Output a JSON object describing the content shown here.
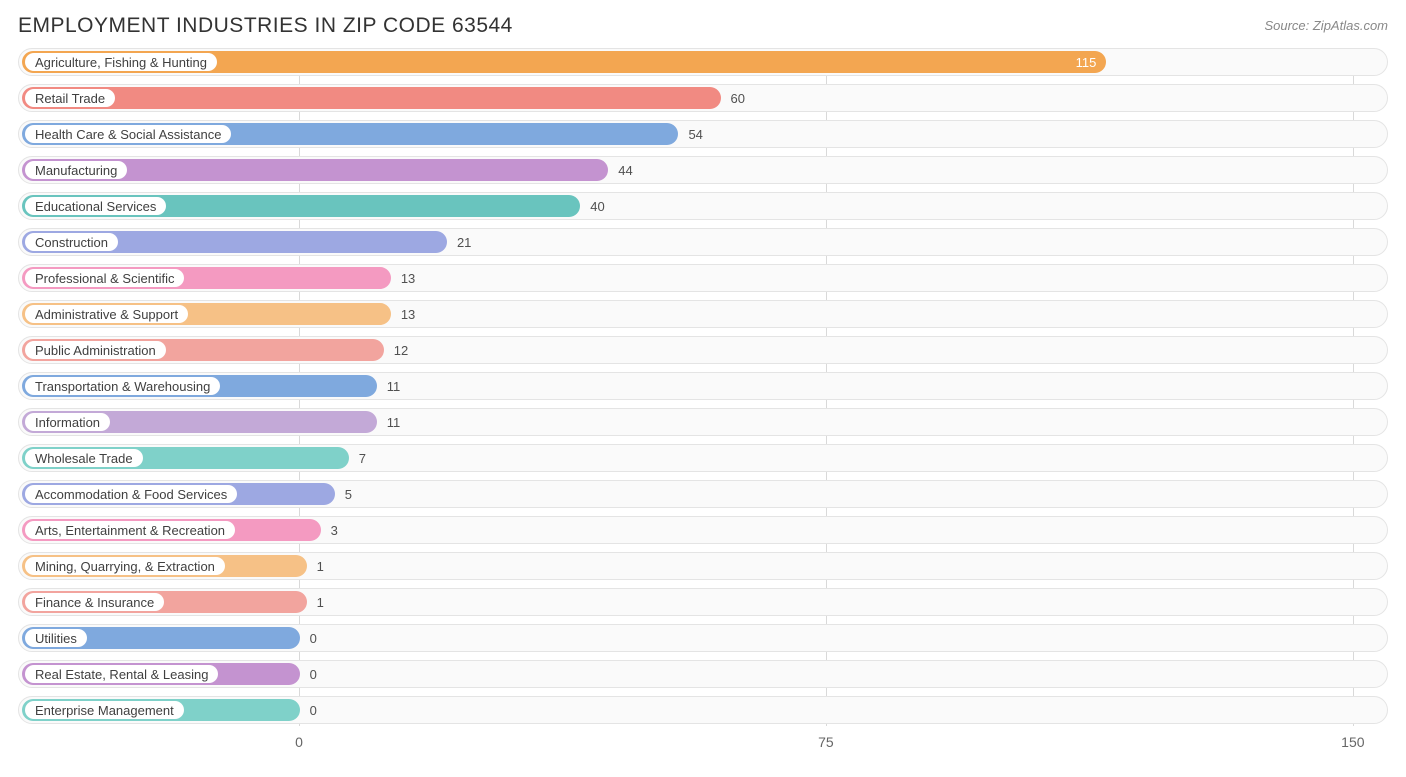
{
  "title": "EMPLOYMENT INDUSTRIES IN ZIP CODE 63544",
  "source": "Source: ZipAtlas.com",
  "chart": {
    "type": "bar-horizontal",
    "xmin": -40,
    "xmax": 155,
    "grid_color": "#d9d9d9",
    "track_bg": "#fafafa",
    "track_border": "#e4e4e4",
    "label_fontsize": 13,
    "title_fontsize": 21,
    "ticks": [
      0,
      75,
      150
    ],
    "bars": [
      {
        "label": "Agriculture, Fishing & Hunting",
        "value": 115,
        "color": "#f3a651",
        "inside": true
      },
      {
        "label": "Retail Trade",
        "value": 60,
        "color": "#f18a82",
        "inside": false
      },
      {
        "label": "Health Care & Social Assistance",
        "value": 54,
        "color": "#7fa9de",
        "inside": false
      },
      {
        "label": "Manufacturing",
        "value": 44,
        "color": "#c493d0",
        "inside": false
      },
      {
        "label": "Educational Services",
        "value": 40,
        "color": "#69c4be",
        "inside": false
      },
      {
        "label": "Construction",
        "value": 21,
        "color": "#9da8e2",
        "inside": false
      },
      {
        "label": "Professional & Scientific",
        "value": 13,
        "color": "#f49ac1",
        "inside": false
      },
      {
        "label": "Administrative & Support",
        "value": 13,
        "color": "#f6c186",
        "inside": false
      },
      {
        "label": "Public Administration",
        "value": 12,
        "color": "#f2a49e",
        "inside": false
      },
      {
        "label": "Transportation & Warehousing",
        "value": 11,
        "color": "#7fa9de",
        "inside": false
      },
      {
        "label": "Information",
        "value": 11,
        "color": "#c3a9d7",
        "inside": false
      },
      {
        "label": "Wholesale Trade",
        "value": 7,
        "color": "#7fd1c9",
        "inside": false
      },
      {
        "label": "Accommodation & Food Services",
        "value": 5,
        "color": "#9da8e2",
        "inside": false
      },
      {
        "label": "Arts, Entertainment & Recreation",
        "value": 3,
        "color": "#f49ac1",
        "inside": false
      },
      {
        "label": "Mining, Quarrying, & Extraction",
        "value": 1,
        "color": "#f6c186",
        "inside": false
      },
      {
        "label": "Finance & Insurance",
        "value": 1,
        "color": "#f2a49e",
        "inside": false
      },
      {
        "label": "Utilities",
        "value": 0,
        "color": "#7fa9de",
        "inside": false
      },
      {
        "label": "Real Estate, Rental & Leasing",
        "value": 0,
        "color": "#c493d0",
        "inside": false
      },
      {
        "label": "Enterprise Management",
        "value": 0,
        "color": "#7fd1c9",
        "inside": false
      }
    ]
  }
}
